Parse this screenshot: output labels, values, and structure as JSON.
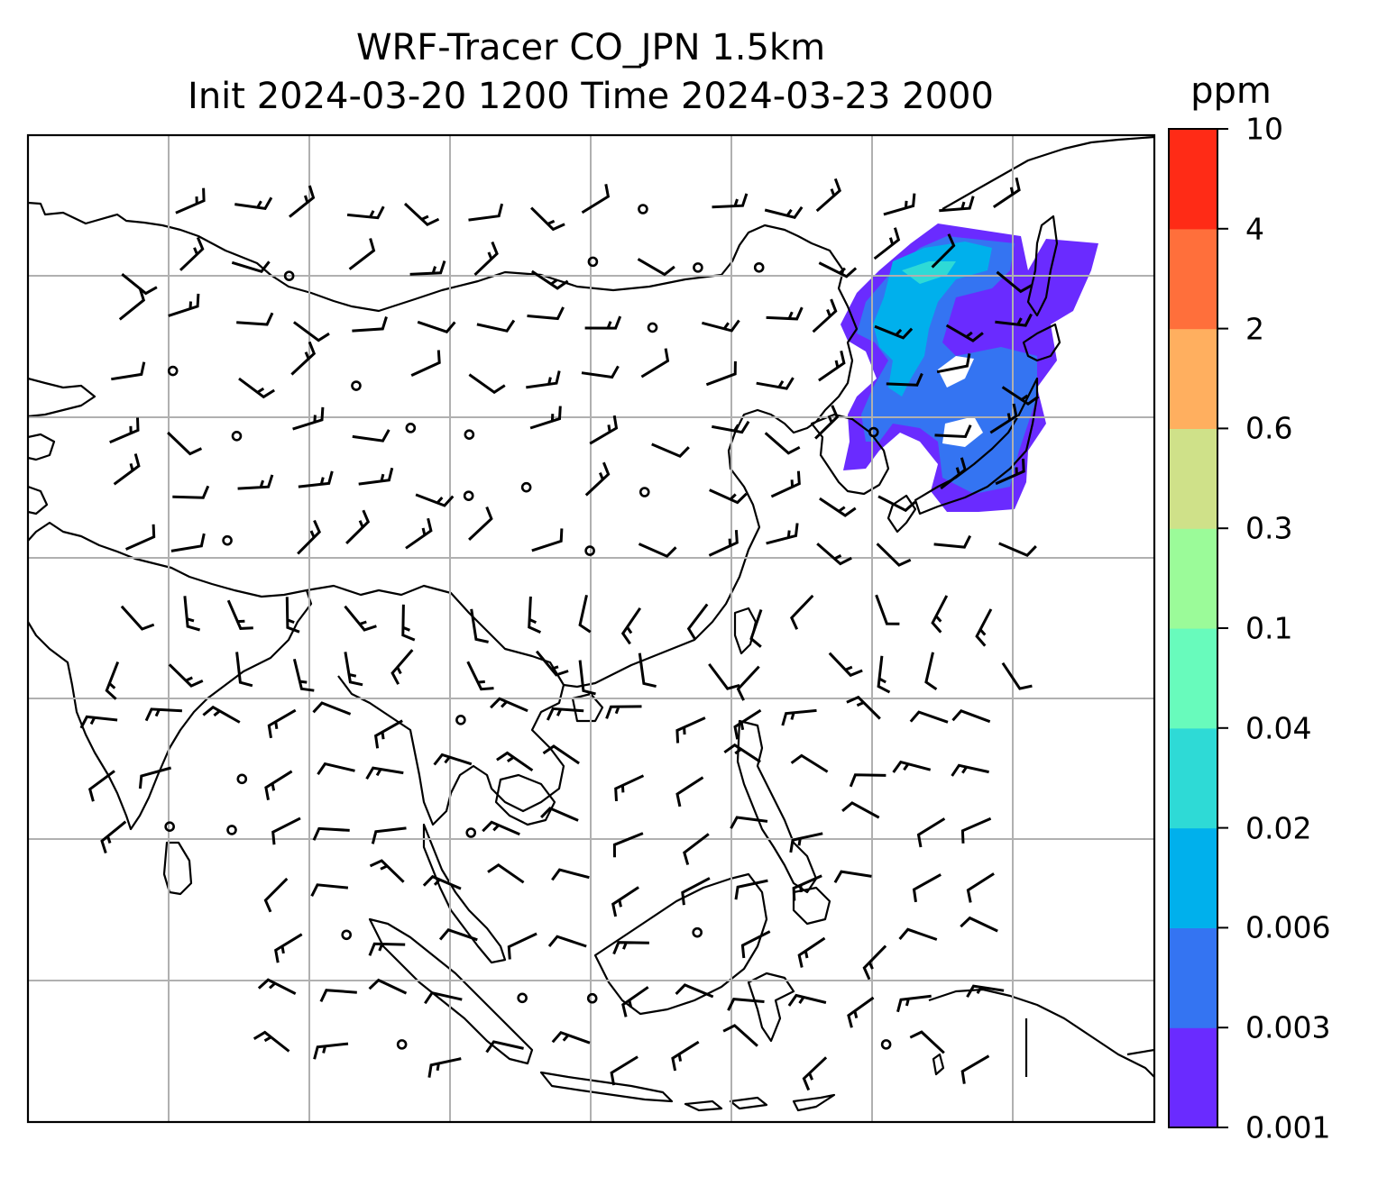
{
  "title": {
    "line1": "WRF-Tracer CO_JPN 1.5km",
    "line2": "Init 2024-03-20 1200 Time 2024-03-23 2000"
  },
  "colorbar": {
    "unit": "ppm",
    "levels": [
      "0.001",
      "0.003",
      "0.006",
      "0.02",
      "0.04",
      "0.1",
      "0.3",
      "0.6",
      "2",
      "4",
      "10"
    ],
    "colors": [
      "#6a2bff",
      "#3474f2",
      "#00b0ec",
      "#2edad6",
      "#68fbbc",
      "#9bfb99",
      "#cfe189",
      "#ffaf5f",
      "#ff6f3b",
      "#ff2b16"
    ]
  },
  "map": {
    "gridlines": "on",
    "grid_color": "#b0b0b0",
    "coastline_color": "#000000",
    "wind_barbs": "shown",
    "plume_region": "Japan / Northeast China / Korea"
  }
}
